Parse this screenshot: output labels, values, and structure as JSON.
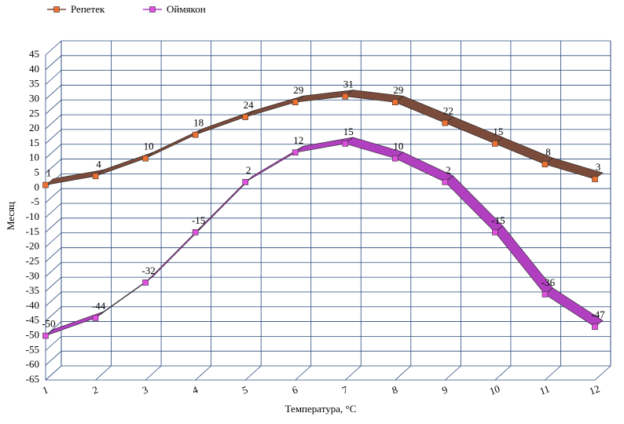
{
  "chart_data": {
    "type": "line",
    "categories": [
      "1",
      "2",
      "3",
      "4",
      "5",
      "6",
      "7",
      "8",
      "9",
      "10",
      "11",
      "12"
    ],
    "series": [
      {
        "name": "Репетек",
        "color": "#7a4a3a",
        "marker_color": "#f07030",
        "values": [
          1,
          4,
          10,
          18,
          24,
          29,
          31,
          29,
          22,
          15,
          8,
          3
        ]
      },
      {
        "name": "Оймякон",
        "color": "#b040c0",
        "marker_color": "#e050e0",
        "values": [
          -50,
          -44,
          -32,
          -15,
          2,
          12,
          15,
          10,
          2,
          -15,
          -36,
          -47
        ]
      }
    ],
    "ylabel": "Месяц",
    "xlabel": "Температура, °С",
    "ylim": [
      -65,
      45
    ],
    "yticks": [
      -65,
      -60,
      -55,
      -50,
      -45,
      -40,
      -35,
      -30,
      -25,
      -20,
      -15,
      -10,
      -5,
      0,
      5,
      10,
      15,
      20,
      25,
      30,
      35,
      40,
      45
    ],
    "grid": true,
    "legend": "top-left"
  }
}
